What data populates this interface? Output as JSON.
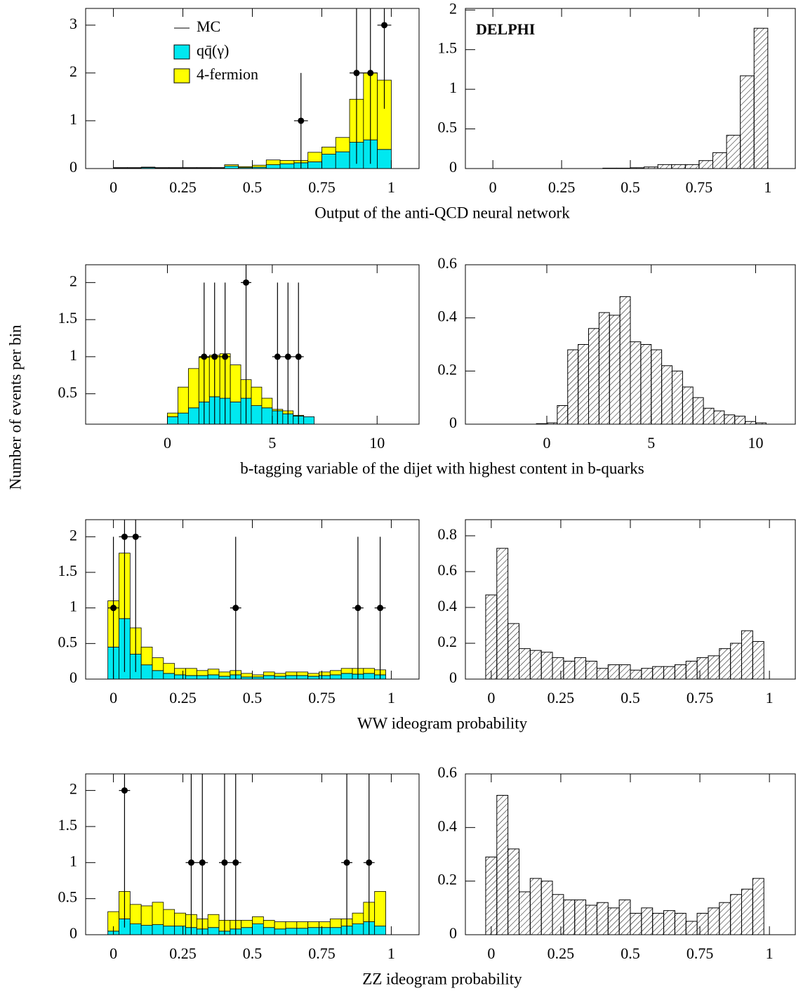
{
  "ylabel": "Number of events per bin",
  "chart_data": [
    {
      "type": "histogram",
      "stacked": true,
      "xlabel": "Output of the anti-QCD neural network",
      "bins": [
        0,
        0.05,
        0.1,
        0.15,
        0.2,
        0.25,
        0.3,
        0.35,
        0.4,
        0.45,
        0.5,
        0.55,
        0.6,
        0.65,
        0.7,
        0.75,
        0.8,
        0.85,
        0.9,
        0.95,
        1
      ],
      "series": [
        {
          "name": "qq̄(γ)",
          "color": "#00e8f0",
          "values": [
            0.01,
            0.01,
            0.02,
            0.01,
            0.01,
            0.01,
            0.01,
            0.01,
            0.05,
            0.02,
            0.03,
            0.08,
            0.1,
            0.12,
            0.14,
            0.3,
            0.35,
            0.55,
            0.6,
            0.4
          ]
        },
        {
          "name": "4-fermion",
          "color": "#ffff00",
          "values": [
            0.01,
            0.01,
            0.01,
            0.01,
            0.01,
            0.01,
            0.01,
            0.01,
            0.03,
            0.02,
            0.04,
            0.1,
            0.07,
            0.05,
            0.2,
            0.15,
            0.3,
            0.9,
            1.4,
            1.45
          ]
        }
      ],
      "data_points": {
        "x": [
          0.675,
          0.875,
          0.925,
          0.975
        ],
        "y": [
          1,
          2,
          2,
          3
        ],
        "err": [
          1,
          1.9,
          1.9,
          1.75
        ]
      },
      "line_legend": "MC",
      "legend": "upper left",
      "xlim": [
        -0.1,
        1.1
      ],
      "ylim": [
        0,
        3.35
      ],
      "xticks": [
        0,
        0.25,
        0.5,
        0.75,
        1
      ],
      "yticks": [
        0,
        1,
        2,
        3
      ]
    },
    {
      "type": "histogram",
      "annotation": "DELPHI",
      "bins": [
        0,
        0.05,
        0.1,
        0.15,
        0.2,
        0.25,
        0.3,
        0.35,
        0.4,
        0.45,
        0.5,
        0.55,
        0.6,
        0.65,
        0.7,
        0.75,
        0.8,
        0.85,
        0.9,
        0.95,
        1
      ],
      "series": [
        {
          "color": "#000000",
          "hatch": true,
          "values": [
            0,
            0,
            0,
            0,
            0,
            0,
            0,
            0,
            0.005,
            0.005,
            0.01,
            0.02,
            0.05,
            0.05,
            0.05,
            0.1,
            0.2,
            0.42,
            1.17,
            1.77
          ]
        }
      ],
      "xlim": [
        -0.1,
        1.1
      ],
      "ylim": [
        0,
        2.02
      ],
      "xticks": [
        0,
        0.25,
        0.5,
        0.75,
        1
      ],
      "yticks": [
        0,
        0.5,
        1,
        1.5,
        2
      ]
    },
    {
      "type": "histogram",
      "stacked": true,
      "xlabel": "b-tagging variable of the dijet with highest content in b-quarks",
      "bins": [
        0,
        0.5,
        1,
        1.5,
        2,
        2.5,
        3,
        3.5,
        4,
        4.5,
        5,
        5.5,
        6,
        6.5,
        7
      ],
      "series": [
        {
          "color": "#00e8f0",
          "values": [
            0.1,
            0.15,
            0.22,
            0.3,
            0.37,
            0.35,
            0.3,
            0.35,
            0.25,
            0.22,
            0.18,
            0.14,
            0.11,
            0.1
          ]
        },
        {
          "color": "#ffff00",
          "values": [
            0.05,
            0.35,
            0.53,
            0.6,
            0.56,
            0.6,
            0.5,
            0.25,
            0.25,
            0.13,
            0.02,
            0.04,
            0.01,
            0
          ]
        }
      ],
      "data_points": {
        "x": [
          1.75,
          2.25,
          2.75,
          3.75,
          5.25,
          5.75,
          6.25
        ],
        "y": [
          1,
          1,
          1,
          2,
          1,
          1,
          1
        ],
        "err": [
          1,
          1,
          1,
          1.9,
          1,
          1,
          1
        ]
      },
      "xlim": [
        -3.9,
        12
      ],
      "ylim": [
        0.09,
        2.24
      ],
      "xticks": [
        0,
        5,
        10
      ],
      "yticks": [
        0.5,
        1,
        1.5,
        2
      ]
    },
    {
      "type": "histogram",
      "bins": [
        -0.5,
        0,
        0.5,
        1,
        1.5,
        2,
        2.5,
        3,
        3.5,
        4,
        4.5,
        5,
        5.5,
        6,
        6.5,
        7,
        7.5,
        8,
        8.5,
        9,
        9.5,
        10,
        10.5
      ],
      "series": [
        {
          "color": "#000000",
          "hatch": true,
          "values": [
            0.002,
            0.005,
            0.07,
            0.28,
            0.3,
            0.36,
            0.42,
            0.41,
            0.48,
            0.31,
            0.3,
            0.28,
            0.22,
            0.2,
            0.14,
            0.1,
            0.06,
            0.05,
            0.035,
            0.03,
            0.01,
            0.005
          ]
        }
      ],
      "xlim": [
        -3.9,
        11.9
      ],
      "ylim": [
        0,
        0.6
      ],
      "xticks": [
        0,
        5,
        10
      ],
      "yticks": [
        0,
        0.2,
        0.4,
        0.6
      ]
    },
    {
      "type": "histogram",
      "stacked": true,
      "xlabel": "WW ideogram probability",
      "bins": [
        -0.02,
        0.02,
        0.06,
        0.1,
        0.14,
        0.18,
        0.22,
        0.26,
        0.3,
        0.34,
        0.38,
        0.42,
        0.46,
        0.5,
        0.54,
        0.58,
        0.62,
        0.66,
        0.7,
        0.74,
        0.78,
        0.82,
        0.86,
        0.9,
        0.94,
        0.98
      ],
      "series": [
        {
          "color": "#00e8f0",
          "values": [
            0.45,
            0.85,
            0.35,
            0.2,
            0.12,
            0.08,
            0.06,
            0.05,
            0.05,
            0.06,
            0.04,
            0.06,
            0.03,
            0.03,
            0.05,
            0.04,
            0.05,
            0.05,
            0.04,
            0.05,
            0.06,
            0.08,
            0.07,
            0.08,
            0.06
          ]
        },
        {
          "color": "#ffff00",
          "values": [
            0.65,
            0.92,
            0.37,
            0.25,
            0.18,
            0.14,
            0.09,
            0.1,
            0.07,
            0.08,
            0.06,
            0.06,
            0.05,
            0.03,
            0.05,
            0.04,
            0.05,
            0.05,
            0.04,
            0.05,
            0.06,
            0.07,
            0.08,
            0.07,
            0.07
          ]
        }
      ],
      "data_points": {
        "x": [
          0,
          0.04,
          0.08,
          0.44,
          0.88,
          0.96
        ],
        "y": [
          1,
          2,
          2,
          1,
          1,
          1
        ],
        "err": [
          1,
          1.9,
          1.9,
          1,
          1,
          1
        ]
      },
      "xlim": [
        -0.1,
        1.1
      ],
      "ylim": [
        0,
        2.24
      ],
      "xticks": [
        0,
        0.25,
        0.5,
        0.75,
        1
      ],
      "yticks": [
        0,
        0.5,
        1,
        1.5,
        2
      ]
    },
    {
      "type": "histogram",
      "bins": [
        -0.02,
        0.02,
        0.06,
        0.1,
        0.14,
        0.18,
        0.22,
        0.26,
        0.3,
        0.34,
        0.38,
        0.42,
        0.46,
        0.5,
        0.54,
        0.58,
        0.62,
        0.66,
        0.7,
        0.74,
        0.78,
        0.82,
        0.86,
        0.9,
        0.94,
        0.98
      ],
      "series": [
        {
          "color": "#000000",
          "hatch": true,
          "values": [
            0.47,
            0.73,
            0.31,
            0.17,
            0.16,
            0.15,
            0.12,
            0.1,
            0.12,
            0.1,
            0.06,
            0.08,
            0.08,
            0.05,
            0.06,
            0.07,
            0.07,
            0.08,
            0.1,
            0.12,
            0.13,
            0.17,
            0.2,
            0.27,
            0.21
          ]
        }
      ],
      "xlim": [
        -0.093,
        1.093
      ],
      "ylim": [
        0,
        0.89
      ],
      "xticks": [
        0,
        0.25,
        0.5,
        0.75,
        1
      ],
      "yticks": [
        0,
        0.2,
        0.4,
        0.6,
        0.8
      ]
    },
    {
      "type": "histogram",
      "stacked": true,
      "xlabel": "ZZ ideogram probability",
      "bins": [
        -0.02,
        0.02,
        0.06,
        0.1,
        0.14,
        0.18,
        0.22,
        0.26,
        0.3,
        0.34,
        0.38,
        0.42,
        0.46,
        0.5,
        0.54,
        0.58,
        0.62,
        0.66,
        0.7,
        0.74,
        0.78,
        0.82,
        0.86,
        0.9,
        0.94,
        0.98
      ],
      "series": [
        {
          "color": "#00e8f0",
          "values": [
            0.05,
            0.22,
            0.15,
            0.13,
            0.14,
            0.12,
            0.12,
            0.1,
            0.08,
            0.1,
            0.05,
            0.08,
            0.1,
            0.15,
            0.1,
            0.08,
            0.09,
            0.09,
            0.1,
            0.1,
            0.1,
            0.12,
            0.15,
            0.18,
            0.12
          ]
        },
        {
          "color": "#ffff00",
          "values": [
            0.27,
            0.38,
            0.27,
            0.27,
            0.31,
            0.23,
            0.18,
            0.18,
            0.14,
            0.18,
            0.15,
            0.12,
            0.1,
            0.1,
            0.1,
            0.1,
            0.09,
            0.09,
            0.08,
            0.08,
            0.12,
            0.1,
            0.15,
            0.27,
            0.48
          ]
        }
      ],
      "data_points": {
        "x": [
          0.04,
          0.28,
          0.32,
          0.4,
          0.44,
          0.84,
          0.92
        ],
        "y": [
          2,
          1,
          1,
          1,
          1,
          1,
          1
        ],
        "err": [
          1.9,
          1.25,
          1.25,
          1.25,
          1.25,
          1.25,
          1.25
        ]
      },
      "xlim": [
        -0.1,
        1.1
      ],
      "ylim": [
        0,
        2.23
      ],
      "xticks": [
        0,
        0.25,
        0.5,
        0.75,
        1
      ],
      "yticks": [
        0,
        0.5,
        1,
        1.5,
        2
      ]
    },
    {
      "type": "histogram",
      "bins": [
        -0.02,
        0.02,
        0.06,
        0.1,
        0.14,
        0.18,
        0.22,
        0.26,
        0.3,
        0.34,
        0.38,
        0.42,
        0.46,
        0.5,
        0.54,
        0.58,
        0.62,
        0.66,
        0.7,
        0.74,
        0.78,
        0.82,
        0.86,
        0.9,
        0.94,
        0.98
      ],
      "series": [
        {
          "color": "#000000",
          "hatch": true,
          "values": [
            0.29,
            0.52,
            0.32,
            0.16,
            0.21,
            0.2,
            0.15,
            0.13,
            0.13,
            0.11,
            0.12,
            0.1,
            0.13,
            0.08,
            0.1,
            0.08,
            0.09,
            0.08,
            0.05,
            0.08,
            0.1,
            0.12,
            0.15,
            0.17,
            0.21
          ]
        }
      ],
      "xlim": [
        -0.093,
        1.093
      ],
      "ylim": [
        0,
        0.6
      ],
      "xticks": [
        0,
        0.25,
        0.5,
        0.75,
        1
      ],
      "yticks": [
        0,
        0.2,
        0.4,
        0.6
      ]
    }
  ]
}
